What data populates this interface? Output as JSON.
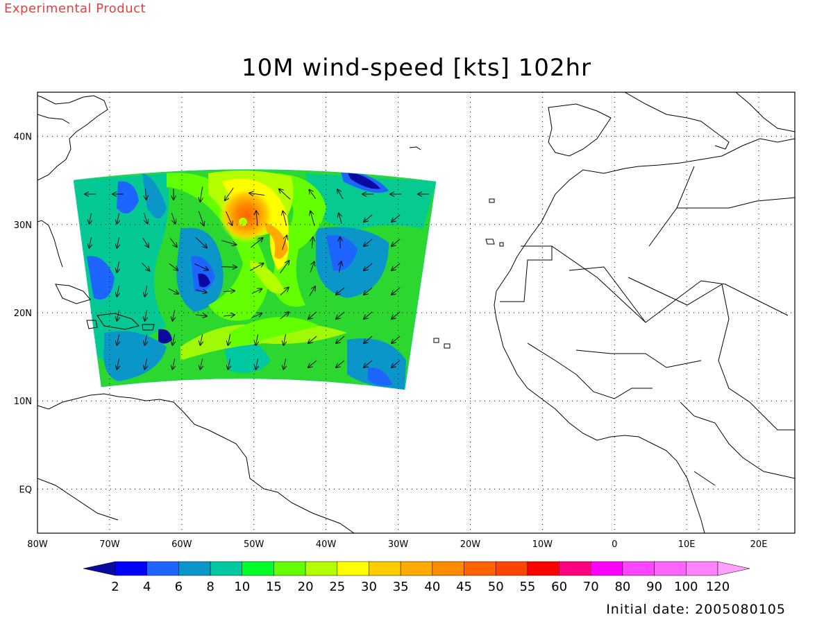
{
  "header": {
    "product_label": "Experimental Product",
    "title": "10M wind-speed [kts] 102hr",
    "initial_date": "Initial date: 2005080105"
  },
  "map": {
    "lon_ticks": [
      "80W",
      "70W",
      "60W",
      "50W",
      "40W",
      "30W",
      "20W",
      "10W",
      "0",
      "10E",
      "20E"
    ],
    "lat_ticks": [
      "40N",
      "30N",
      "20N",
      "10N",
      "EQ"
    ],
    "lon_range": [
      -80,
      25
    ],
    "lat_range": [
      -5,
      45
    ],
    "grid": "dotted"
  },
  "colorbar": {
    "labels": [
      "2",
      "4",
      "6",
      "8",
      "10",
      "15",
      "20",
      "25",
      "30",
      "35",
      "40",
      "45",
      "50",
      "55",
      "60",
      "70",
      "80",
      "90",
      "100",
      "120"
    ],
    "colors": [
      "#0a0aa0",
      "#0000ff",
      "#1e64ff",
      "#0a96c8",
      "#00c8a0",
      "#00ff28",
      "#64ff00",
      "#b4ff00",
      "#ffff00",
      "#ffcc00",
      "#ffaa00",
      "#ff8c00",
      "#ff6400",
      "#ff4600",
      "#ff0000",
      "#ff0080",
      "#ff00ff",
      "#ff46ff",
      "#ff64ff",
      "#ff82ff",
      "#ffa0ff"
    ]
  }
}
